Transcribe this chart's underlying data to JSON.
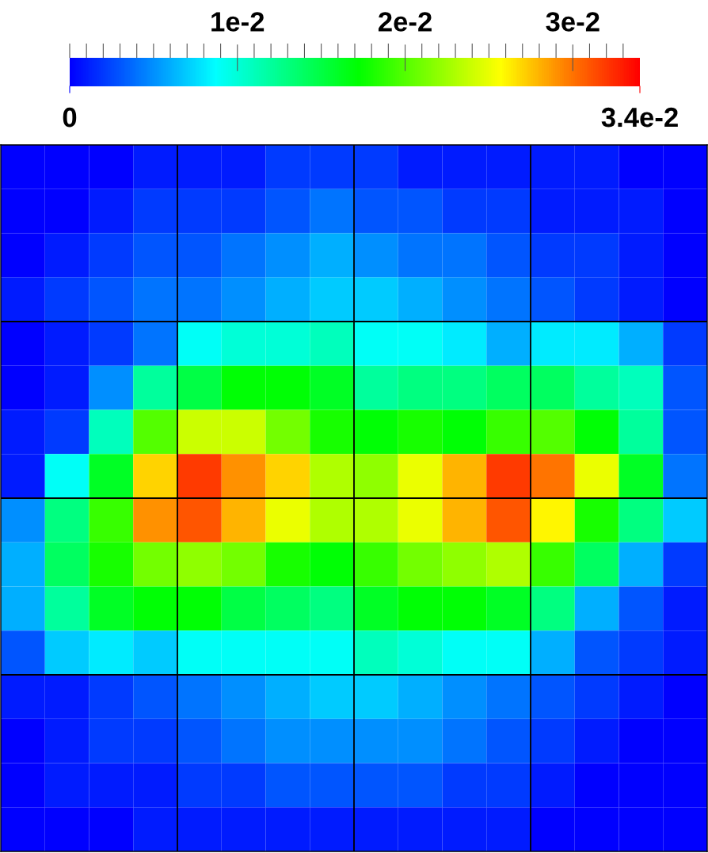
{
  "chart_data": {
    "type": "heatmap",
    "categories": [
      null,
      null,
      null,
      null,
      null,
      null,
      null,
      null,
      null,
      null,
      null,
      null,
      null,
      null,
      null,
      null
    ],
    "y_categories": [
      null,
      null,
      null,
      null,
      null,
      null,
      null,
      null,
      null,
      null,
      null,
      null,
      null,
      null,
      null,
      null
    ],
    "cells": [
      [
        0,
        0,
        0,
        0.001,
        0.001,
        0.001,
        0.002,
        0.002,
        0.002,
        0.001,
        0.001,
        0.001,
        0.001,
        0.001,
        0,
        0
      ],
      [
        0,
        0,
        0.001,
        0.002,
        0.002,
        0.002,
        0.003,
        0.004,
        0.003,
        0.003,
        0.002,
        0.002,
        0.001,
        0.001,
        0.001,
        0
      ],
      [
        0,
        0.001,
        0.002,
        0.003,
        0.003,
        0.004,
        0.005,
        0.006,
        0.005,
        0.004,
        0.004,
        0.003,
        0.002,
        0.002,
        0.001,
        0
      ],
      [
        0.001,
        0.002,
        0.003,
        0.004,
        0.004,
        0.005,
        0.006,
        0.007,
        0.007,
        0.006,
        0.005,
        0.004,
        0.003,
        0.002,
        0.001,
        0
      ],
      [
        0,
        0.001,
        0.002,
        0.004,
        0.009,
        0.01,
        0.01,
        0.011,
        0.009,
        0.009,
        0.008,
        0.006,
        0.008,
        0.008,
        0.006,
        0.002
      ],
      [
        0,
        0.001,
        0.005,
        0.012,
        0.015,
        0.017,
        0.017,
        0.016,
        0.012,
        0.013,
        0.013,
        0.014,
        0.014,
        0.012,
        0.011,
        0.003
      ],
      [
        0.001,
        0.002,
        0.011,
        0.02,
        0.024,
        0.024,
        0.021,
        0.018,
        0.017,
        0.018,
        0.017,
        0.019,
        0.02,
        0.017,
        0.012,
        0.003
      ],
      [
        0.001,
        0.009,
        0.016,
        0.027,
        0.032,
        0.029,
        0.027,
        0.023,
        0.022,
        0.025,
        0.028,
        0.032,
        0.03,
        0.025,
        0.016,
        0.004
      ],
      [
        0.005,
        0.013,
        0.019,
        0.029,
        0.031,
        0.028,
        0.025,
        0.023,
        0.023,
        0.025,
        0.028,
        0.031,
        0.026,
        0.018,
        0.013,
        0.007
      ],
      [
        0.006,
        0.014,
        0.018,
        0.021,
        0.022,
        0.021,
        0.018,
        0.017,
        0.019,
        0.021,
        0.022,
        0.023,
        0.019,
        0.014,
        0.006,
        0.002
      ],
      [
        0.006,
        0.012,
        0.016,
        0.017,
        0.017,
        0.015,
        0.014,
        0.013,
        0.016,
        0.017,
        0.017,
        0.016,
        0.013,
        0.006,
        0.003,
        0.001
      ],
      [
        0.003,
        0.007,
        0.008,
        0.007,
        0.009,
        0.009,
        0.009,
        0.009,
        0.011,
        0.01,
        0.009,
        0.009,
        0.006,
        0.003,
        0.002,
        0.001
      ],
      [
        0.001,
        0.001,
        0.002,
        0.003,
        0.004,
        0.005,
        0.006,
        0.007,
        0.007,
        0.006,
        0.005,
        0.004,
        0.003,
        0.002,
        0.001,
        0
      ],
      [
        0,
        0.001,
        0.002,
        0.002,
        0.003,
        0.004,
        0.005,
        0.005,
        0.005,
        0.005,
        0.004,
        0.003,
        0.002,
        0.001,
        0,
        0
      ],
      [
        0,
        0.001,
        0.001,
        0.001,
        0.002,
        0.002,
        0.003,
        0.003,
        0.003,
        0.003,
        0.002,
        0.002,
        0.001,
        0,
        0,
        0
      ],
      [
        0,
        0,
        0,
        0.001,
        0.001,
        0.001,
        0.001,
        0.001,
        0.001,
        0.001,
        0.001,
        0.001,
        0,
        0,
        0,
        0
      ]
    ],
    "clim": [
      0,
      0.034
    ],
    "cticks": [
      {
        "value": 0,
        "label": null
      },
      {
        "value": 0.001,
        "label": null
      },
      {
        "value": 0.002,
        "label": null
      },
      {
        "value": 0.003,
        "label": null
      },
      {
        "value": 0.004,
        "label": null
      },
      {
        "value": 0.005,
        "label": null
      },
      {
        "value": 0.006,
        "label": null
      },
      {
        "value": 0.007,
        "label": null
      },
      {
        "value": 0.008,
        "label": null
      },
      {
        "value": 0.009,
        "label": null
      },
      {
        "value": 0.01,
        "label": "1e-2"
      },
      {
        "value": 0.011,
        "label": null
      },
      {
        "value": 0.012,
        "label": null
      },
      {
        "value": 0.013,
        "label": null
      },
      {
        "value": 0.014,
        "label": null
      },
      {
        "value": 0.015,
        "label": null
      },
      {
        "value": 0.016,
        "label": null
      },
      {
        "value": 0.017,
        "label": null
      },
      {
        "value": 0.018,
        "label": null
      },
      {
        "value": 0.019,
        "label": null
      },
      {
        "value": 0.02,
        "label": "2e-2"
      },
      {
        "value": 0.021,
        "label": null
      },
      {
        "value": 0.022,
        "label": null
      },
      {
        "value": 0.023,
        "label": null
      },
      {
        "value": 0.024,
        "label": null
      },
      {
        "value": 0.025,
        "label": null
      },
      {
        "value": 0.026,
        "label": null
      },
      {
        "value": 0.027,
        "label": null
      },
      {
        "value": 0.028,
        "label": null
      },
      {
        "value": 0.029,
        "label": null
      },
      {
        "value": 0.03,
        "label": "3e-2"
      },
      {
        "value": 0.031,
        "label": null
      },
      {
        "value": 0.032,
        "label": null
      },
      {
        "value": 0.033,
        "label": null
      }
    ],
    "annotations": [
      "0",
      "3.4e-2"
    ]
  }
}
